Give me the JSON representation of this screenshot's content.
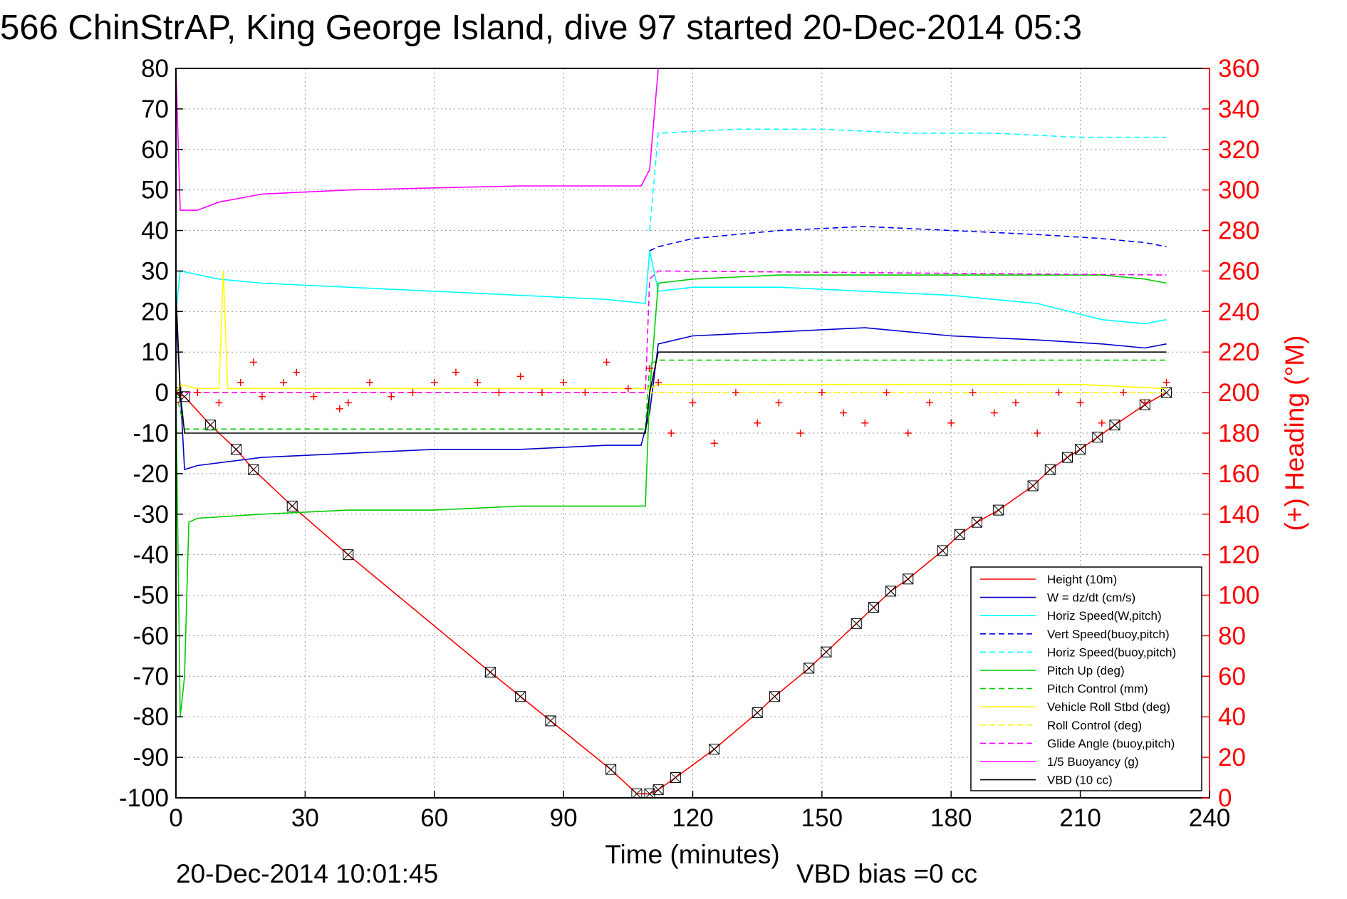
{
  "chart_data": {
    "type": "line",
    "title": "566 ChinStrAP, King George Island, dive 97 started 20-Dec-2014 05:3",
    "xlabel": "Time (minutes)",
    "ylabel_right": "(+) Heading (°M)",
    "footer_left": "20-Dec-2014 10:01:45",
    "footer_right": "VBD bias =0 cc",
    "xlim": [
      0,
      240
    ],
    "ylim": [
      -100,
      80
    ],
    "ylim_right": [
      0,
      360
    ],
    "x_ticks": [
      "0",
      "30",
      "60",
      "90",
      "120",
      "150",
      "180",
      "210",
      "240"
    ],
    "y_ticks": [
      "80",
      "70",
      "60",
      "50",
      "40",
      "30",
      "20",
      "10",
      "0",
      "-10",
      "-20",
      "-30",
      "-40",
      "-50",
      "-60",
      "-70",
      "-80",
      "-90",
      "-100"
    ],
    "y_right_ticks": [
      "360",
      "340",
      "320",
      "300",
      "280",
      "260",
      "240",
      "220",
      "200",
      "180",
      "160",
      "140",
      "120",
      "100",
      "80",
      "60",
      "40",
      "20",
      "0"
    ],
    "grid": true,
    "legend_position": "bottom-right",
    "right_axis_color": "#ff0000",
    "series": [
      {
        "name": "Height (10m)",
        "color": "#ff0000",
        "style": "solid",
        "marker": "x-box",
        "x": [
          0,
          2,
          8,
          14,
          18,
          27,
          40,
          73,
          80,
          87,
          101,
          107,
          110,
          112,
          116,
          125,
          135,
          139,
          147,
          151,
          158,
          162,
          166,
          170,
          178,
          182,
          186,
          191,
          199,
          203,
          207,
          210,
          214,
          218,
          225,
          230
        ],
        "y": [
          0,
          -1,
          -8,
          -14,
          -19,
          -28,
          -40,
          -69,
          -75,
          -81,
          -93,
          -99,
          -99,
          -98,
          -95,
          -88,
          -79,
          -75,
          -68,
          -64,
          -57,
          -53,
          -49,
          -46,
          -39,
          -35,
          -32,
          -29,
          -23,
          -19,
          -16,
          -14,
          -11,
          -8,
          -3,
          0
        ]
      },
      {
        "name": "W = dz/dt (cm/s)",
        "color": "#0000cc",
        "style": "solid",
        "x": [
          0,
          2,
          5,
          20,
          40,
          60,
          80,
          100,
          108,
          110,
          112,
          120,
          140,
          160,
          180,
          200,
          215,
          225,
          230
        ],
        "y": [
          20,
          -19,
          -18,
          -16,
          -15,
          -14,
          -14,
          -13,
          -13,
          -5,
          12,
          14,
          15,
          16,
          14,
          13,
          12,
          11,
          12
        ]
      },
      {
        "name": "Horiz Speed(W,pitch)",
        "color": "#00ffff",
        "style": "solid",
        "x": [
          0,
          1,
          10,
          20,
          40,
          60,
          80,
          100,
          109,
          110,
          112,
          120,
          140,
          160,
          180,
          200,
          215,
          225,
          230
        ],
        "y": [
          20,
          30,
          28,
          27,
          26,
          25,
          24,
          23,
          22,
          35,
          25,
          26,
          26,
          25,
          24,
          22,
          18,
          17,
          18
        ]
      },
      {
        "name": "Vert Speed(buoy,pitch)",
        "color": "#0000ff",
        "style": "dashed",
        "x": [
          110,
          112,
          120,
          140,
          160,
          180,
          200,
          215,
          225,
          230
        ],
        "y": [
          35,
          36,
          38,
          40,
          41,
          40,
          39,
          38,
          37,
          36
        ]
      },
      {
        "name": "Horiz Speed(buoy,pitch)",
        "color": "#00ffff",
        "style": "dashed",
        "x": [
          110,
          112,
          130,
          150,
          170,
          190,
          210,
          225,
          230
        ],
        "y": [
          40,
          64,
          65,
          65,
          64,
          64,
          63,
          63,
          63
        ]
      },
      {
        "name": "Pitch Up (deg)",
        "color": "#00cc00",
        "style": "solid",
        "x": [
          0,
          1,
          2,
          3,
          5,
          20,
          40,
          60,
          80,
          100,
          109,
          110,
          112,
          120,
          140,
          160,
          180,
          200,
          215,
          225,
          230
        ],
        "y": [
          0,
          -80,
          -70,
          -32,
          -31,
          -30,
          -29,
          -29,
          -28,
          -28,
          -28,
          0,
          27,
          28,
          29,
          29,
          29,
          29,
          29,
          28,
          27
        ]
      },
      {
        "name": "Pitch Control (mm)",
        "color": "#00cc00",
        "style": "dashed",
        "x": [
          0,
          2,
          109,
          110,
          112,
          230
        ],
        "y": [
          0,
          -9,
          -9,
          7,
          8,
          8
        ]
      },
      {
        "name": "Vehicle Roll Stbd (deg)",
        "color": "#ffff00",
        "style": "solid",
        "x": [
          0,
          1,
          5,
          10,
          11,
          12,
          20,
          40,
          60,
          80,
          100,
          110,
          112,
          130,
          150,
          170,
          190,
          210,
          230
        ],
        "y": [
          0,
          2,
          1,
          1,
          30,
          1,
          1,
          1,
          1,
          1,
          1,
          1,
          2,
          2,
          2,
          2,
          2,
          2,
          1
        ]
      },
      {
        "name": "Roll Control (deg)",
        "color": "#ffff00",
        "style": "dashed",
        "x": [
          0,
          230
        ],
        "y": [
          0,
          0
        ]
      },
      {
        "name": "Glide Angle (buoy,pitch)",
        "color": "#ff00ff",
        "style": "dashed",
        "x": [
          0,
          109,
          110,
          112,
          230
        ],
        "y": [
          0,
          0,
          28,
          30,
          29
        ]
      },
      {
        "name": "1/5 Buoyancy (g)",
        "color": "#ff00ff",
        "style": "solid",
        "x": [
          0,
          1,
          5,
          10,
          20,
          40,
          60,
          80,
          100,
          108,
          110,
          112
        ],
        "y": [
          80,
          45,
          45,
          47,
          49,
          50,
          50.5,
          51,
          51,
          51,
          55,
          80
        ]
      },
      {
        "name": "VBD (10 cc)",
        "color": "#000000",
        "style": "solid",
        "x": [
          0,
          1,
          2,
          109,
          110,
          112,
          230
        ],
        "y": [
          25,
          0,
          -10,
          -10,
          0,
          10,
          10
        ]
      },
      {
        "name": "",
        "color": "#ff0000",
        "style": "marker",
        "axis": "right",
        "marker": "+",
        "x": [
          0,
          5,
          10,
          15,
          18,
          20,
          25,
          28,
          32,
          38,
          40,
          45,
          50,
          55,
          60,
          65,
          70,
          75,
          80,
          85,
          90,
          95,
          100,
          105,
          110,
          112,
          115,
          120,
          125,
          130,
          135,
          140,
          145,
          150,
          155,
          160,
          165,
          170,
          175,
          180,
          185,
          190,
          195,
          200,
          205,
          210,
          215,
          220,
          225,
          230
        ],
        "y": [
          195,
          200,
          195,
          205,
          215,
          198,
          205,
          210,
          198,
          192,
          195,
          205,
          198,
          200,
          205,
          210,
          205,
          200,
          208,
          200,
          205,
          200,
          215,
          202,
          212,
          205,
          180,
          195,
          175,
          200,
          185,
          195,
          180,
          200,
          190,
          185,
          200,
          180,
          195,
          185,
          200,
          190,
          195,
          180,
          200,
          195,
          185,
          200,
          195,
          205
        ]
      }
    ]
  }
}
